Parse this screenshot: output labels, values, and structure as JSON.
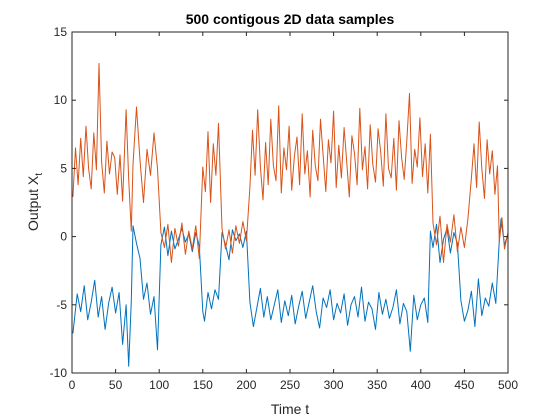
{
  "chart_data": {
    "type": "line",
    "title": "500 contigous 2D data samples",
    "xlabel": "Time t",
    "ylabel_main": "Output X",
    "ylabel_sub": "t",
    "xlim": [
      0,
      500
    ],
    "ylim": [
      -10,
      15
    ],
    "grid": false,
    "x_ticks": [
      "0",
      "50",
      "100",
      "150",
      "200",
      "250",
      "300",
      "350",
      "400",
      "450",
      "500"
    ],
    "y_ticks": [
      "-10",
      "-5",
      "0",
      "5",
      "10",
      "15"
    ],
    "colors": {
      "series_1": "#0072BD",
      "series_2": "#D95319",
      "axis": "#262626"
    },
    "series": [
      {
        "color": "#0072BD",
        "x": [
          1,
          6,
          10,
          14,
          18,
          22,
          26,
          30,
          34,
          38,
          42,
          46,
          50,
          54,
          58,
          62,
          65,
          68,
          70,
          74,
          78,
          82,
          86,
          90,
          94,
          98,
          102,
          106,
          110,
          114,
          118,
          122,
          126,
          130,
          134,
          138,
          142,
          146,
          150,
          152,
          156,
          160,
          164,
          168,
          172,
          176,
          180,
          184,
          188,
          192,
          196,
          200,
          204,
          208,
          212,
          216,
          220,
          224,
          228,
          232,
          236,
          240,
          244,
          248,
          252,
          256,
          260,
          264,
          268,
          272,
          276,
          280,
          284,
          288,
          292,
          296,
          300,
          304,
          308,
          312,
          316,
          320,
          324,
          328,
          332,
          336,
          340,
          344,
          348,
          352,
          356,
          360,
          364,
          368,
          372,
          376,
          380,
          384,
          388,
          392,
          396,
          400,
          404,
          408,
          411,
          414,
          418,
          422,
          426,
          430,
          434,
          438,
          442,
          446,
          450,
          454,
          458,
          462,
          466,
          470,
          474,
          478,
          482,
          486,
          490,
          492,
          496,
          500
        ],
        "y": [
          -7.1,
          -4.2,
          -5.5,
          -3.6,
          -6.1,
          -4.8,
          -3.2,
          -5.9,
          -4.4,
          -6.8,
          -4.9,
          -3.7,
          -5.6,
          -4.1,
          -7.9,
          -5.0,
          -9.5,
          -4.7,
          0.8,
          -0.5,
          -1.6,
          -4.6,
          -3.4,
          -5.7,
          -4.4,
          -8.3,
          -0.6,
          0.7,
          -1.4,
          0.4,
          -0.9,
          -0.2,
          0.6,
          -0.4,
          0.2,
          -1.1,
          0.3,
          -0.7,
          -5.5,
          -6.2,
          -4.1,
          -5.3,
          -3.9,
          -4.6,
          0.3,
          -0.6,
          -1.7,
          0.5,
          -0.3,
          0.2,
          -0.8,
          0.4,
          -4.8,
          -6.6,
          -5.2,
          -3.8,
          -5.9,
          -4.4,
          -6.1,
          -5.0,
          -3.9,
          -6.3,
          -4.7,
          -5.8,
          -4.3,
          -6.4,
          -5.1,
          -4.0,
          -6.0,
          -4.8,
          -3.6,
          -5.5,
          -6.7,
          -4.5,
          -5.2,
          -3.9,
          -6.1,
          -4.9,
          -5.6,
          -4.2,
          -6.5,
          -5.0,
          -4.4,
          -5.9,
          -3.7,
          -6.2,
          -4.8,
          -5.3,
          -6.8,
          -4.1,
          -5.7,
          -4.6,
          -6.0,
          -5.2,
          -3.9,
          -6.4,
          -4.9,
          -5.5,
          -8.4,
          -4.3,
          -6.1,
          -5.0,
          -4.5,
          -6.3,
          0.4,
          -0.8,
          0.9,
          -1.9,
          -0.2,
          0.6,
          -1.2,
          0.3,
          -0.5,
          -4.7,
          -6.2,
          -5.4,
          -4.0,
          -6.6,
          -3.1,
          -5.8,
          -4.5,
          -5.1,
          -3.4,
          -4.9,
          -0.3,
          1.3,
          -0.6,
          0.2
        ]
      },
      {
        "color": "#D95319",
        "x": [
          1,
          4,
          7,
          10,
          13,
          16,
          19,
          22,
          25,
          28,
          31,
          34,
          37,
          40,
          43,
          46,
          49,
          52,
          55,
          58,
          62,
          65,
          68,
          70,
          74,
          78,
          82,
          86,
          90,
          94,
          98,
          102,
          106,
          110,
          114,
          118,
          122,
          126,
          130,
          134,
          138,
          142,
          146,
          150,
          153,
          156,
          159,
          162,
          165,
          168,
          172,
          176,
          180,
          184,
          188,
          192,
          196,
          200,
          204,
          207,
          210,
          213,
          216,
          219,
          222,
          225,
          228,
          231,
          234,
          237,
          240,
          243,
          246,
          249,
          252,
          255,
          258,
          261,
          264,
          267,
          270,
          273,
          276,
          279,
          282,
          285,
          288,
          291,
          294,
          297,
          300,
          303,
          306,
          309,
          312,
          315,
          318,
          321,
          324,
          327,
          330,
          333,
          336,
          339,
          342,
          345,
          348,
          351,
          354,
          357,
          360,
          363,
          366,
          369,
          372,
          375,
          378,
          381,
          384,
          387,
          390,
          393,
          396,
          399,
          402,
          405,
          408,
          411,
          414,
          418,
          422,
          426,
          430,
          434,
          438,
          442,
          446,
          450,
          454,
          458,
          461,
          464,
          467,
          470,
          473,
          476,
          479,
          482,
          485,
          488,
          490,
          493,
          496,
          500
        ],
        "y": [
          2.9,
          6.5,
          3.8,
          7.2,
          4.4,
          8.1,
          5.0,
          3.5,
          7.6,
          4.9,
          12.7,
          5.5,
          3.2,
          7.0,
          4.6,
          6.2,
          5.8,
          3.1,
          6.0,
          2.6,
          9.3,
          4.2,
          0.4,
          5.3,
          9.5,
          5.6,
          2.5,
          6.4,
          4.5,
          7.6,
          5.0,
          0.3,
          -0.8,
          0.9,
          -1.9,
          0.6,
          -0.7,
          1.0,
          -1.3,
          0.4,
          -0.9,
          0.8,
          -1.6,
          5.1,
          3.3,
          7.7,
          2.5,
          6.8,
          4.5,
          8.3,
          0.6,
          -0.9,
          0.5,
          -1.2,
          0.8,
          -0.5,
          1.1,
          -0.3,
          3.6,
          7.8,
          4.5,
          9.3,
          5.1,
          2.7,
          6.9,
          3.8,
          8.6,
          5.2,
          4.1,
          9.6,
          3.2,
          6.5,
          4.9,
          8.1,
          3.4,
          5.9,
          7.3,
          3.8,
          9.0,
          4.6,
          6.3,
          2.9,
          7.8,
          5.2,
          4.1,
          8.6,
          6.0,
          3.3,
          7.1,
          5.4,
          9.2,
          3.6,
          6.7,
          4.3,
          8.0,
          5.5,
          2.9,
          7.4,
          6.1,
          3.8,
          9.4,
          4.9,
          6.6,
          3.5,
          8.2,
          5.3,
          4.0,
          7.9,
          6.2,
          3.7,
          9.0,
          5.0,
          4.3,
          7.2,
          3.4,
          8.5,
          5.8,
          4.2,
          7.0,
          10.5,
          3.9,
          6.4,
          5.1,
          8.7,
          4.4,
          6.8,
          3.2,
          7.5,
          1.0,
          -0.6,
          1.5,
          -1.9,
          0.9,
          -0.4,
          1.6,
          -1.1,
          0.7,
          -0.8,
          1.3,
          4.3,
          6.8,
          3.6,
          8.4,
          5.0,
          2.8,
          7.1,
          4.6,
          6.3,
          3.1,
          5.2,
          -0.4,
          1.4,
          -0.9,
          0.3
        ]
      }
    ]
  }
}
